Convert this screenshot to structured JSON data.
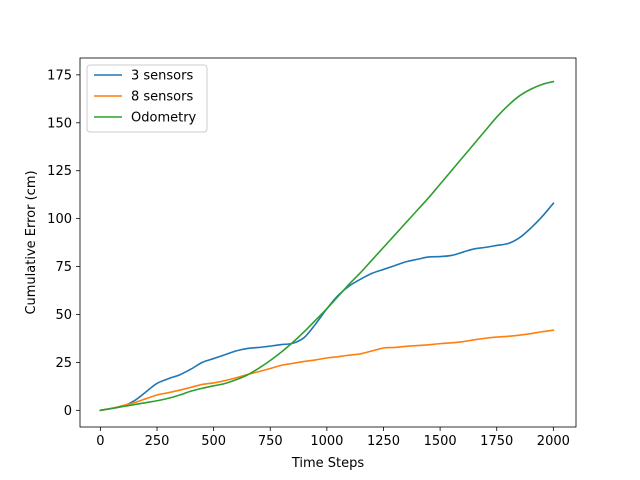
{
  "chart_data": {
    "type": "line",
    "title": "",
    "xlabel": "Time Steps",
    "ylabel": "Cumulative Error (cm)",
    "xlim": [
      -90,
      2100
    ],
    "ylim": [
      -8.7,
      183.8
    ],
    "xticks": [
      0,
      250,
      500,
      750,
      1000,
      1250,
      1500,
      1750,
      2000
    ],
    "yticks": [
      0,
      25,
      50,
      75,
      100,
      125,
      150,
      175
    ],
    "grid": false,
    "legend_position": "top-left",
    "series": [
      {
        "name": "3 sensors",
        "color": "#1f77b4",
        "x": [
          0,
          50,
          100,
          150,
          200,
          250,
          300,
          350,
          400,
          450,
          500,
          550,
          600,
          650,
          700,
          750,
          800,
          850,
          900,
          950,
          1000,
          1050,
          1100,
          1150,
          1200,
          1250,
          1300,
          1350,
          1400,
          1450,
          1500,
          1550,
          1600,
          1650,
          1700,
          1750,
          1800,
          1850,
          1900,
          1950,
          2000
        ],
        "y": [
          0,
          1,
          2.2,
          5,
          9.5,
          14,
          16.5,
          18.5,
          21.5,
          25,
          27,
          29,
          31,
          32.3,
          32.8,
          33.5,
          34.3,
          35,
          38,
          45,
          53,
          60,
          65,
          68.5,
          71.5,
          73.5,
          75.5,
          77.5,
          78.8,
          80,
          80.2,
          80.8,
          82.5,
          84.2,
          85,
          86,
          87,
          90,
          95,
          101,
          108
        ]
      },
      {
        "name": "8 sensors",
        "color": "#ff7f0e",
        "x": [
          0,
          50,
          100,
          150,
          200,
          250,
          300,
          350,
          400,
          450,
          500,
          550,
          600,
          650,
          700,
          750,
          800,
          850,
          900,
          950,
          1000,
          1050,
          1100,
          1150,
          1200,
          1250,
          1300,
          1350,
          1400,
          1450,
          1500,
          1550,
          1600,
          1650,
          1700,
          1750,
          1800,
          1850,
          1900,
          1950,
          2000
        ],
        "y": [
          0,
          1,
          2.5,
          4,
          6,
          8,
          9.2,
          10.5,
          12,
          13.5,
          14.3,
          15.5,
          17,
          18.7,
          20.2,
          21.8,
          23.5,
          24.5,
          25.5,
          26.3,
          27.3,
          28,
          28.8,
          29.5,
          31,
          32.5,
          32.8,
          33.4,
          33.8,
          34.2,
          34.8,
          35.2,
          35.8,
          36.8,
          37.6,
          38.2,
          38.6,
          39.2,
          40,
          41,
          41.8
        ]
      },
      {
        "name": "Odometry",
        "color": "#2ca02c",
        "x": [
          0,
          50,
          100,
          150,
          200,
          250,
          300,
          350,
          400,
          450,
          500,
          550,
          600,
          650,
          700,
          750,
          800,
          850,
          900,
          950,
          1000,
          1050,
          1100,
          1150,
          1200,
          1250,
          1300,
          1350,
          1400,
          1450,
          1500,
          1550,
          1600,
          1650,
          1700,
          1750,
          1800,
          1850,
          1900,
          1950,
          2000
        ],
        "y": [
          0,
          1,
          2,
          3,
          4,
          5,
          6.3,
          8,
          10,
          11.5,
          12.8,
          14,
          16,
          18.5,
          22,
          26,
          30.5,
          35.5,
          41,
          47,
          53,
          59.5,
          66,
          72,
          78.5,
          85,
          91.5,
          98,
          104.5,
          111,
          118,
          125,
          132,
          139,
          146,
          153,
          159,
          164,
          167.5,
          170,
          171.5
        ]
      }
    ]
  }
}
